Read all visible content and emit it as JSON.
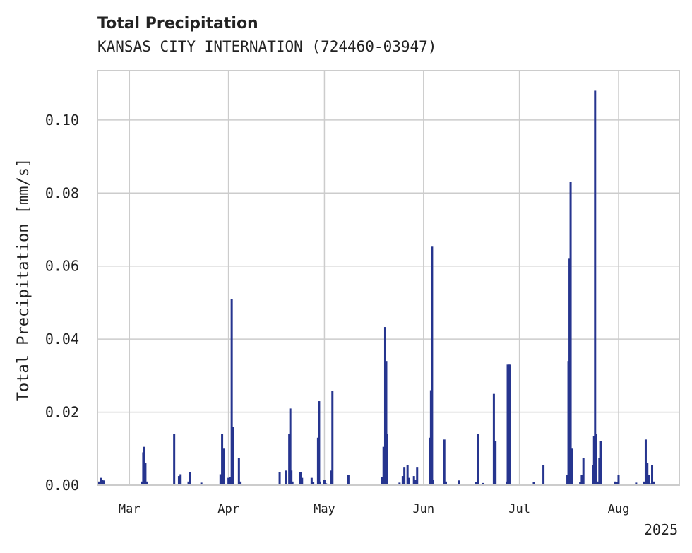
{
  "chart_data": {
    "type": "bar",
    "title": "Total Precipitation",
    "subtitle": "KANSAS CITY INTERNATION (724460-03947)",
    "ylabel": "Total Precipitation [mm/s]",
    "xlabel": "",
    "year_label": "2025",
    "xlim": [
      "2025-02-19",
      "2025-08-20"
    ],
    "ylim": [
      0,
      0.1135
    ],
    "yticks": [
      0,
      0.02,
      0.04,
      0.06,
      0.08,
      0.1
    ],
    "yticklabels": [
      "0.00",
      "0.02",
      "0.04",
      "0.06",
      "0.08",
      "0.10"
    ],
    "xticks": [
      {
        "date": "2025-03-01",
        "label": "Mar"
      },
      {
        "date": "2025-04-01",
        "label": "Apr"
      },
      {
        "date": "2025-05-01",
        "label": "May"
      },
      {
        "date": "2025-06-01",
        "label": "Jun"
      },
      {
        "date": "2025-07-01",
        "label": "Jul"
      },
      {
        "date": "2025-08-01",
        "label": "Aug"
      }
    ],
    "grid": true,
    "color": "#26358f",
    "x": [
      "2025-02-19T12:00",
      "2025-02-20T00:00",
      "2025-02-20T12:00",
      "2025-02-21T00:00",
      "2025-03-05T00:00",
      "2025-03-05T08:00",
      "2025-03-05T16:00",
      "2025-03-06T00:00",
      "2025-03-06T12:00",
      "2025-03-15T00:00",
      "2025-03-16T12:00",
      "2025-03-17T00:00",
      "2025-03-19T12:00",
      "2025-03-20T00:00",
      "2025-03-23T12:00",
      "2025-03-29T12:00",
      "2025-03-30T00:00",
      "2025-03-30T12:00",
      "2025-04-01T00:00",
      "2025-04-01T12:00",
      "2025-04-02T00:00",
      "2025-04-02T12:00",
      "2025-04-04T06:00",
      "2025-04-04T18:00",
      "2025-04-17T00:00",
      "2025-04-19T00:00",
      "2025-04-20T00:00",
      "2025-04-20T08:00",
      "2025-04-20T16:00",
      "2025-04-21T00:00",
      "2025-04-23T12:00",
      "2025-04-24T00:00",
      "2025-04-27T00:00",
      "2025-04-27T12:00",
      "2025-04-29T00:00",
      "2025-04-29T08:00",
      "2025-04-29T16:00",
      "2025-05-01T00:00",
      "2025-05-01T12:00",
      "2025-05-03T00:00",
      "2025-05-03T12:00",
      "2025-05-08T12:00",
      "2025-05-19T00:00",
      "2025-05-19T12:00",
      "2025-05-20T00:00",
      "2025-05-20T08:00",
      "2025-05-20T16:00",
      "2025-05-24T12:00",
      "2025-05-25T12:00",
      "2025-05-26T00:00",
      "2025-05-27T00:00",
      "2025-05-27T12:00",
      "2025-05-29T00:00",
      "2025-05-29T12:00",
      "2025-05-30T00:00",
      "2025-06-03T00:00",
      "2025-06-03T08:00",
      "2025-06-03T16:00",
      "2025-06-04T00:00",
      "2025-06-07T12:00",
      "2025-06-08T00:00",
      "2025-06-12T00:00",
      "2025-06-17T12:00",
      "2025-06-18T00:00",
      "2025-06-19T12:00",
      "2025-06-23T00:00",
      "2025-06-23T12:00",
      "2025-06-27T00:00",
      "2025-06-27T08:00",
      "2025-06-27T16:00",
      "2025-06-28T00:00",
      "2025-07-05T12:00",
      "2025-07-08T12:00",
      "2025-07-16T00:00",
      "2025-07-16T08:00",
      "2025-07-16T16:00",
      "2025-07-17T00:00",
      "2025-07-17T12:00",
      "2025-07-20T00:00",
      "2025-07-20T12:00",
      "2025-07-21T00:00",
      "2025-07-24T00:00",
      "2025-07-24T08:00",
      "2025-07-24T16:00",
      "2025-07-25T00:00",
      "2025-07-25T12:00",
      "2025-07-26T00:00",
      "2025-07-26T12:00",
      "2025-07-31T00:00",
      "2025-07-31T12:00",
      "2025-08-01T00:00",
      "2025-08-06T12:00",
      "2025-08-09T00:00",
      "2025-08-09T12:00",
      "2025-08-10T00:00",
      "2025-08-10T12:00",
      "2025-08-11T00:00",
      "2025-08-11T12:00",
      "2025-08-12T00:00"
    ],
    "values": [
      0.001,
      0.002,
      0.0015,
      0.0013,
      0.001,
      0.009,
      0.0105,
      0.006,
      0.001,
      0.014,
      0.0025,
      0.003,
      0.001,
      0.0035,
      0.0007,
      0.003,
      0.014,
      0.01,
      0.002,
      0.0022,
      0.051,
      0.016,
      0.0075,
      0.001,
      0.0035,
      0.004,
      0.014,
      0.021,
      0.004,
      0.001,
      0.0035,
      0.002,
      0.002,
      0.0008,
      0.013,
      0.023,
      0.001,
      0.0014,
      0.0005,
      0.004,
      0.0258,
      0.0028,
      0.0022,
      0.0105,
      0.0433,
      0.034,
      0.014,
      0.0007,
      0.0025,
      0.005,
      0.0055,
      0.002,
      0.0025,
      0.0015,
      0.005,
      0.013,
      0.026,
      0.0653,
      0.0015,
      0.0125,
      0.001,
      0.0013,
      0.0008,
      0.014,
      0.0006,
      0.025,
      0.012,
      0.001,
      0.033,
      0.033,
      0.033,
      0.0008,
      0.0055,
      0.0028,
      0.034,
      0.062,
      0.083,
      0.01,
      0.0008,
      0.0028,
      0.0075,
      0.0055,
      0.0135,
      0.108,
      0.014,
      0.001,
      0.0075,
      0.012,
      0.001,
      0.0008,
      0.0028,
      0.0007,
      0.001,
      0.0125,
      0.006,
      0.0028,
      0.0005,
      0.0055,
      0.001
    ]
  }
}
